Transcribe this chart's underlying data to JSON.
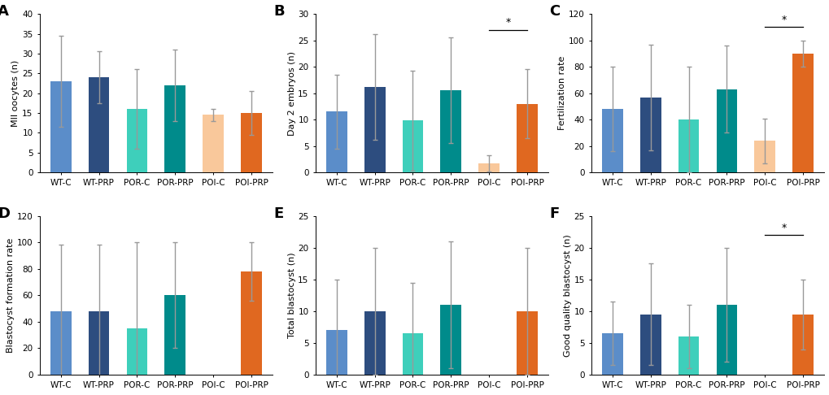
{
  "categories": [
    "WT-C",
    "WT-PRP",
    "POR-C",
    "POR-PRP",
    "POI-C",
    "POI-PRP"
  ],
  "colors": [
    "#5b8dc9",
    "#2d4d7f",
    "#3ecfbb",
    "#008b8b",
    "#f9c89b",
    "#e06820"
  ],
  "panels": [
    {
      "label": "A",
      "ylabel": "MII oocytes (n)",
      "ylim": [
        0,
        40
      ],
      "yticks": [
        0,
        5,
        10,
        15,
        20,
        25,
        30,
        35,
        40
      ],
      "values": [
        23,
        24,
        16,
        22,
        14.5,
        15
      ],
      "errors": [
        11.5,
        6.5,
        10,
        9,
        1.5,
        5.5
      ],
      "sig_line": null
    },
    {
      "label": "B",
      "ylabel": "Day 2 embryos (n)",
      "ylim": [
        0,
        30
      ],
      "yticks": [
        0,
        5,
        10,
        15,
        20,
        25,
        30
      ],
      "values": [
        11.5,
        16.2,
        9.8,
        15.5,
        1.7,
        13
      ],
      "errors": [
        7,
        10,
        9.5,
        10,
        1.5,
        6.5
      ],
      "sig_line": [
        4,
        5,
        27,
        "*"
      ]
    },
    {
      "label": "C",
      "ylabel": "Fertilization rate",
      "ylim": [
        0,
        120
      ],
      "yticks": [
        0,
        20,
        40,
        60,
        80,
        100,
        120
      ],
      "values": [
        48,
        57,
        40,
        63,
        24,
        90
      ],
      "errors": [
        32,
        40,
        40,
        33,
        17,
        10
      ],
      "sig_line": [
        4,
        5,
        110,
        "*"
      ]
    },
    {
      "label": "D",
      "ylabel": "Blastocyst formation rate",
      "ylim": [
        0,
        120
      ],
      "yticks": [
        0,
        20,
        40,
        60,
        80,
        100,
        120
      ],
      "values": [
        48,
        48,
        35,
        60,
        0,
        78
      ],
      "errors": [
        50,
        50,
        65,
        40,
        0,
        22
      ],
      "sig_line": null
    },
    {
      "label": "E",
      "ylabel": "Total blastocyst (n)",
      "ylim": [
        0,
        25
      ],
      "yticks": [
        0,
        5,
        10,
        15,
        20,
        25
      ],
      "values": [
        7,
        10,
        6.5,
        11,
        0,
        10
      ],
      "errors": [
        8,
        10,
        8,
        10,
        0,
        10
      ],
      "sig_line": null
    },
    {
      "label": "F",
      "ylabel": "Good quality blastocyst (n)",
      "ylim": [
        0,
        25
      ],
      "yticks": [
        0,
        5,
        10,
        15,
        20,
        25
      ],
      "values": [
        6.5,
        9.5,
        6,
        11,
        0,
        9.5
      ],
      "errors": [
        5,
        8,
        5,
        9,
        0,
        5.5
      ],
      "sig_line": [
        4,
        5,
        22,
        "*"
      ]
    }
  ],
  "background_color": "#ffffff",
  "bar_width": 0.55,
  "ylabel_fontsize": 8,
  "tick_fontsize": 7.5,
  "panel_label_fontsize": 13,
  "error_capsize": 2.5,
  "error_color": "#999999",
  "error_linewidth": 1.0,
  "sig_linewidth": 0.9,
  "sig_fontsize": 9
}
